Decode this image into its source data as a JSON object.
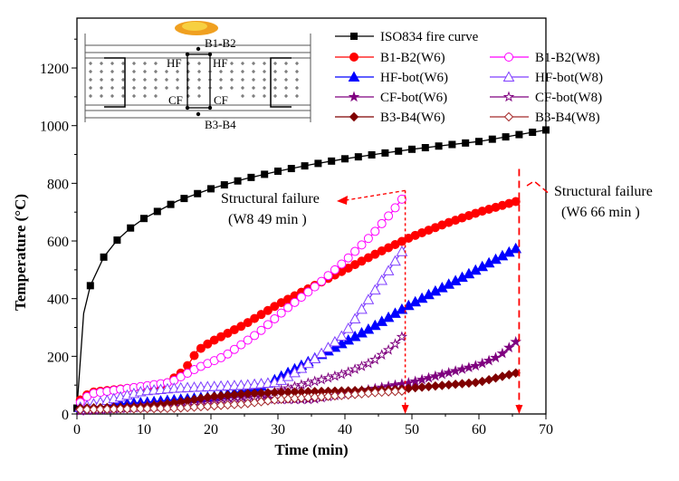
{
  "chart_data": {
    "type": "line",
    "xlabel": "Time (min)",
    "ylabel": "Temperature (°C)",
    "xlim": [
      0,
      70
    ],
    "ylim": [
      0,
      1250
    ],
    "xticks": [
      0,
      10,
      20,
      30,
      40,
      50,
      60,
      70
    ],
    "yticks": [
      0,
      200,
      400,
      600,
      800,
      1000,
      1200
    ],
    "grid": false,
    "legend_position": "top-right",
    "series": [
      {
        "name": "ISO834 fire curve",
        "color": "#000000",
        "marker": "square-filled",
        "step": 2,
        "x": [
          0,
          1,
          2,
          4,
          6,
          8,
          10,
          15,
          20,
          25,
          30,
          35,
          40,
          45,
          50,
          55,
          60,
          65,
          70
        ],
        "y": [
          20,
          349,
          445,
          544,
          603,
          645,
          678,
          739,
          781,
          815,
          842,
          865,
          885,
          902,
          918,
          932,
          945,
          965,
          985
        ]
      },
      {
        "name": "B1-B2(W6)",
        "color": "#ff0000",
        "marker": "circle-filled",
        "step": 1,
        "x": [
          0,
          2,
          8,
          13,
          16,
          18,
          20,
          25,
          30,
          35,
          40,
          45,
          50,
          55,
          60,
          66
        ],
        "y": [
          40,
          75,
          90,
          100,
          150,
          220,
          250,
          310,
          380,
          440,
          500,
          560,
          615,
          660,
          700,
          740
        ]
      },
      {
        "name": "B1-B2(W8)",
        "color": "#ff00ff",
        "marker": "circle-open",
        "step": 1,
        "x": [
          0,
          2,
          8,
          14,
          18,
          22,
          27,
          31,
          36,
          40,
          44,
          47,
          49
        ],
        "y": [
          30,
          70,
          90,
          110,
          160,
          200,
          280,
          360,
          450,
          530,
          620,
          700,
          760
        ]
      },
      {
        "name": "HF-bot(W6)",
        "color": "#0000ff",
        "marker": "triangle-filled",
        "step": 1,
        "x": [
          0,
          2,
          10,
          15,
          20,
          25,
          28,
          32,
          36,
          40,
          44,
          49,
          53,
          58,
          62,
          66
        ],
        "y": [
          20,
          30,
          40,
          50,
          60,
          80,
          100,
          150,
          200,
          250,
          300,
          370,
          420,
          480,
          530,
          580
        ]
      },
      {
        "name": "HF-bot(W8)",
        "color": "#7f3fff",
        "marker": "triangle-open",
        "step": 1,
        "x": [
          0,
          5,
          10,
          15,
          25,
          30,
          33,
          36,
          40,
          43,
          46,
          49
        ],
        "y": [
          20,
          50,
          80,
          90,
          100,
          110,
          150,
          200,
          280,
          380,
          480,
          580
        ]
      },
      {
        "name": "CF-bot(W6)",
        "color": "#7f007f",
        "marker": "star-filled",
        "step": 1,
        "x": [
          0,
          10,
          15,
          20,
          25,
          30,
          35,
          40,
          45,
          50,
          55,
          60,
          63,
          66
        ],
        "y": [
          10,
          30,
          40,
          50,
          60,
          50,
          50,
          70,
          90,
          110,
          140,
          170,
          200,
          260
        ]
      },
      {
        "name": "CF-bot(W8)",
        "color": "#7f007f",
        "marker": "star-open",
        "step": 1,
        "x": [
          0,
          15,
          25,
          30,
          35,
          40,
          44,
          47,
          49
        ],
        "y": [
          10,
          30,
          45,
          80,
          110,
          140,
          180,
          230,
          280
        ]
      },
      {
        "name": "B3-B4(W6)",
        "color": "#7f0000",
        "marker": "diamond-filled",
        "step": 1,
        "x": [
          0,
          10,
          15,
          20,
          25,
          30,
          40,
          48,
          50,
          55,
          60,
          66
        ],
        "y": [
          20,
          25,
          40,
          60,
          70,
          75,
          80,
          85,
          90,
          100,
          110,
          145
        ]
      },
      {
        "name": "B3-B4(W8)",
        "color": "#a52a2a",
        "marker": "diamond-open",
        "step": 1,
        "x": [
          0,
          15,
          25,
          30,
          40,
          45,
          49
        ],
        "y": [
          15,
          20,
          35,
          50,
          65,
          75,
          80
        ]
      }
    ],
    "annotations": [
      {
        "text": "Structural failure",
        "detail": "(W8  49 min )",
        "x": 49,
        "color": "#ff0000"
      },
      {
        "text": "Structural failure",
        "detail": "(W6  66 min )",
        "x": 66,
        "color": "#ff0000"
      }
    ],
    "inset_labels": {
      "top": "B1-B2",
      "hf_left": "HF",
      "hf_right": "HF",
      "cf_left": "CF",
      "cf_right": "CF",
      "bottom": "B3-B4"
    }
  }
}
